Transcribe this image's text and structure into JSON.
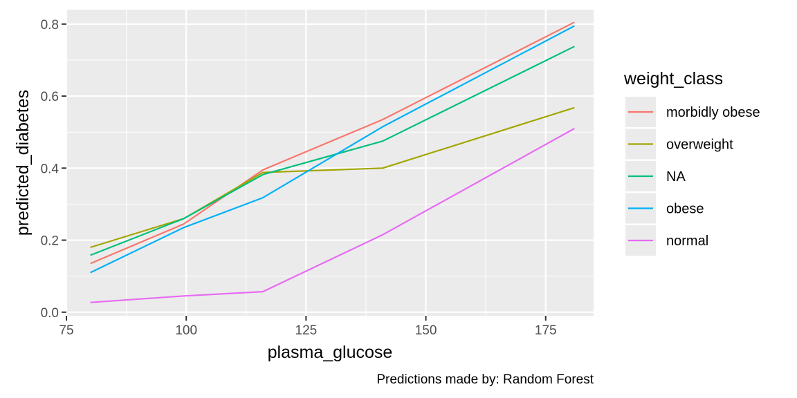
{
  "chart_data": {
    "type": "line",
    "title": "",
    "xlabel": "plasma_glucose",
    "ylabel": "predicted_diabetes",
    "caption": "Predictions made by: Random Forest",
    "xlim": [
      75,
      185
    ],
    "ylim": [
      -0.01,
      0.84
    ],
    "x_ticks": [
      75,
      100,
      125,
      150,
      175
    ],
    "x_minor": [
      87.5,
      112.5,
      137.5,
      162.5
    ],
    "y_ticks": [
      0.0,
      0.2,
      0.4,
      0.6,
      0.8
    ],
    "y_minor": [
      0.1,
      0.3,
      0.5,
      0.7
    ],
    "y_tick_labels": [
      "0.0",
      "0.2",
      "0.4",
      "0.6",
      "0.8"
    ],
    "x_tick_labels": [
      "75",
      "100",
      "125",
      "150",
      "175"
    ],
    "grid": true,
    "legend_title": "weight_class",
    "legend_position": "right",
    "x": [
      80,
      99.5,
      116,
      141,
      181
    ],
    "series": [
      {
        "name": "morbidly obese",
        "color": "#F8766D",
        "values": [
          0.135,
          0.245,
          0.395,
          0.535,
          0.805
        ]
      },
      {
        "name": "overweight",
        "color": "#A3A500",
        "values": [
          0.18,
          0.26,
          0.388,
          0.4,
          0.568
        ]
      },
      {
        "name": "NA",
        "color": "#00BF7D",
        "values": [
          0.158,
          0.26,
          0.382,
          0.475,
          0.738
        ]
      },
      {
        "name": "obese",
        "color": "#00B0F6",
        "values": [
          0.11,
          0.235,
          0.318,
          0.515,
          0.795
        ]
      },
      {
        "name": "normal",
        "color": "#E76BF3",
        "values": [
          0.027,
          0.045,
          0.057,
          0.215,
          0.51
        ]
      }
    ]
  }
}
